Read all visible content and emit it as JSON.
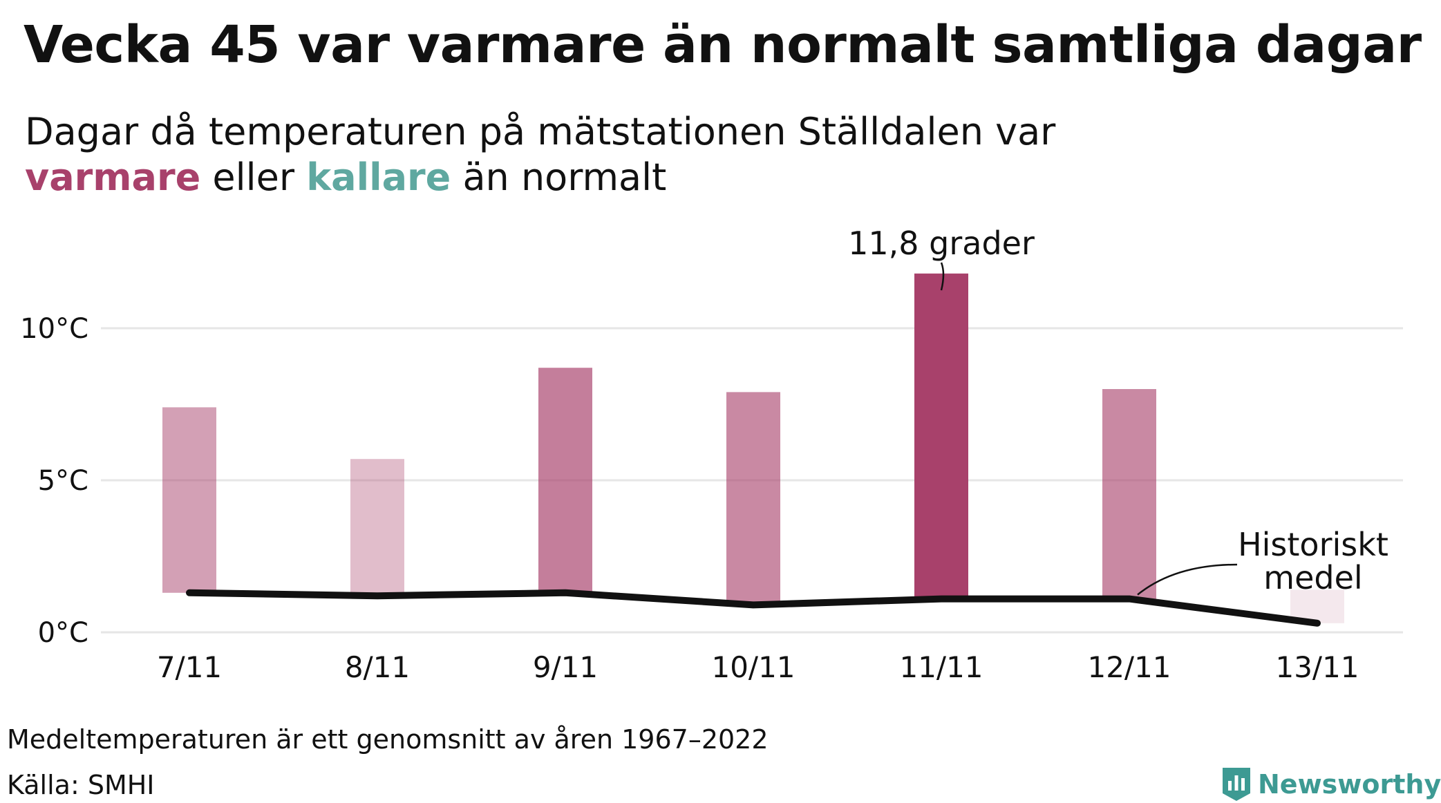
{
  "title": "Vecka 45 var varmare än normalt samtliga dagar",
  "subtitle": {
    "line1": "Dagar då temperaturen på mätstationen Ställdalen var",
    "warm_word": "varmare",
    "middle": " eller ",
    "cold_word": "kallare",
    "end": " än normalt"
  },
  "footnote": "Medeltemperaturen är ett genomsnitt av åren 1967–2022",
  "source": "Källa: SMHI",
  "brand": {
    "name": "Newsworthy",
    "icon": "newsworthy-logo-icon",
    "color": "#3d9a93"
  },
  "colors": {
    "warm": "#a8416b",
    "cold": "#5fa8a0",
    "mean_line": "#111111",
    "grid": "#e6e6e6"
  },
  "chart_data": {
    "type": "bar",
    "categories": [
      "7/11",
      "8/11",
      "9/11",
      "10/11",
      "11/11",
      "12/11",
      "13/11"
    ],
    "series": [
      {
        "values": [
          7.4,
          5.7,
          8.7,
          7.9,
          11.8,
          8.0,
          1.4
        ]
      },
      {
        "name": "Historiskt medel",
        "type": "line",
        "values": [
          1.3,
          1.2,
          1.3,
          0.9,
          1.1,
          1.1,
          0.3
        ]
      }
    ],
    "bar_opacity": [
      0.5,
      0.35,
      0.68,
      0.62,
      1.0,
      0.62,
      0.12
    ],
    "yticks": [
      0,
      5,
      10
    ],
    "ytick_labels": [
      "0°C",
      "5°C",
      "10°C"
    ],
    "ylim": [
      0,
      12.5
    ],
    "grid": true,
    "annotations": [
      {
        "text": "11,8 grader",
        "category": "11/11"
      },
      {
        "text": "Historiskt",
        "text2": "medel",
        "category": "12/11"
      }
    ]
  }
}
